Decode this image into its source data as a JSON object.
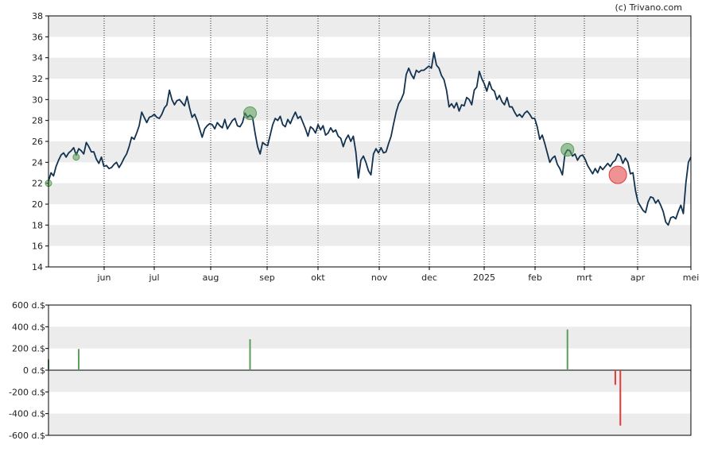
{
  "credit": "(c) Trivano.com",
  "chart_data": [
    {
      "type": "line",
      "y_ticks": [
        14,
        16,
        18,
        20,
        22,
        24,
        26,
        28,
        30,
        32,
        34,
        36,
        38
      ],
      "ylim": [
        14,
        38
      ],
      "x_labels": [
        "jun",
        "jul",
        "aug",
        "sep",
        "okt",
        "nov",
        "dec",
        "2025",
        "feb",
        "mrt",
        "apr",
        "mei"
      ],
      "colors": {
        "line": "#12324f",
        "band": "#ececec",
        "buy": "#5a9e5a",
        "sell": "#e03a3a"
      },
      "series": [
        {
          "values": [
            22.2,
            23.0,
            22.7,
            23.6,
            24.2,
            24.7,
            24.9,
            24.5,
            24.9,
            25.1,
            25.4,
            24.7,
            25.3,
            25.1,
            24.8,
            25.9,
            25.5,
            25.0,
            25.0,
            24.3,
            23.9,
            24.5,
            23.6,
            23.7,
            23.4,
            23.5,
            23.8,
            24.0,
            23.5,
            23.9,
            24.4,
            24.8,
            25.5,
            26.4,
            26.2,
            26.8,
            27.5,
            28.8,
            28.3,
            27.8,
            28.3,
            28.4,
            28.6,
            28.3,
            28.2,
            28.6,
            29.2,
            29.5,
            30.9,
            30.0,
            29.5,
            29.9,
            30.0,
            29.7,
            29.4,
            30.3,
            29.2,
            28.3,
            28.6,
            28.0,
            27.2,
            26.4,
            27.2,
            27.5,
            27.7,
            27.6,
            27.2,
            27.8,
            27.5,
            27.3,
            28.1,
            27.2,
            27.6,
            28.0,
            28.2,
            27.5,
            27.4,
            27.8,
            28.7,
            28.3,
            28.5,
            28.3,
            26.8,
            25.5,
            24.8,
            25.9,
            25.7,
            25.6,
            26.6,
            27.6,
            28.2,
            28.0,
            28.4,
            27.6,
            27.4,
            28.1,
            27.7,
            28.3,
            28.8,
            28.2,
            28.4,
            27.8,
            27.2,
            26.5,
            27.4,
            27.2,
            26.8,
            27.6,
            27.1,
            27.5,
            26.6,
            26.8,
            27.3,
            26.9,
            27.1,
            26.5,
            26.3,
            25.5,
            26.2,
            26.6,
            26.0,
            26.5,
            25.0,
            22.5,
            24.2,
            24.6,
            24.0,
            23.2,
            22.8,
            24.8,
            25.3,
            24.9,
            25.4,
            24.9,
            25.0,
            25.8,
            26.5,
            27.7,
            28.8,
            29.6,
            30.0,
            30.6,
            32.4,
            33.0,
            32.4,
            32.0,
            32.8,
            32.6,
            32.8,
            32.8,
            33.0,
            33.2,
            33.0,
            34.5,
            33.3,
            33.0,
            32.3,
            31.9,
            30.9,
            29.3,
            29.6,
            29.2,
            29.7,
            28.9,
            29.5,
            29.4,
            30.2,
            30.0,
            29.5,
            30.9,
            31.2,
            32.7,
            32.0,
            31.5,
            30.8,
            31.7,
            31.0,
            30.8,
            30.0,
            30.4,
            29.8,
            29.5,
            30.2,
            29.3,
            29.3,
            28.8,
            28.4,
            28.6,
            28.3,
            28.7,
            28.9,
            28.6,
            28.2,
            28.2,
            27.4,
            26.2,
            26.6,
            25.8,
            24.9,
            24.0,
            24.4,
            24.6,
            23.8,
            23.4,
            22.8,
            24.8,
            25.2,
            25.1,
            24.6,
            24.8,
            24.2,
            24.6,
            24.7,
            24.3,
            23.7,
            23.3,
            22.9,
            23.4,
            23.0,
            23.6,
            23.3,
            23.6,
            23.9,
            23.6,
            24.0,
            24.2,
            24.8,
            24.6,
            23.9,
            24.4,
            24.0,
            22.9,
            23.0,
            21.3,
            20.2,
            19.8,
            19.4,
            19.2,
            20.2,
            20.7,
            20.6,
            20.1,
            20.4,
            19.9,
            19.3,
            18.3,
            18.0,
            18.7,
            18.8,
            18.6,
            19.3,
            19.9,
            19.1,
            22.0,
            24.0,
            24.5
          ]
        }
      ],
      "markers": [
        {
          "index": 0,
          "value": 22.0,
          "kind": "buy",
          "size": "small"
        },
        {
          "index": 11,
          "value": 24.5,
          "kind": "buy",
          "size": "small"
        },
        {
          "index": 80,
          "value": 28.7,
          "kind": "buy",
          "size": "medium"
        },
        {
          "index": 206,
          "value": 25.2,
          "kind": "buy",
          "size": "medium"
        },
        {
          "index": 226,
          "value": 22.8,
          "kind": "sell",
          "size": "large"
        }
      ]
    },
    {
      "type": "bar",
      "y_tick_labels": [
        "600 d.$",
        "400 d.$",
        "200 d.$",
        "0 d.$",
        "-200 d.$",
        "-400 d.$",
        "-600 d.$"
      ],
      "y_ticks": [
        600,
        400,
        200,
        0,
        -200,
        -400,
        -600
      ],
      "ylim": [
        -600,
        600
      ],
      "bars": [
        {
          "index": 0,
          "value": 100,
          "kind": "buy"
        },
        {
          "index": 12,
          "value": 195,
          "kind": "buy"
        },
        {
          "index": 80,
          "value": 285,
          "kind": "buy"
        },
        {
          "index": 206,
          "value": 375,
          "kind": "buy"
        },
        {
          "index": 225,
          "value": -135,
          "kind": "sell"
        },
        {
          "index": 227,
          "value": -510,
          "kind": "sell"
        }
      ]
    }
  ]
}
